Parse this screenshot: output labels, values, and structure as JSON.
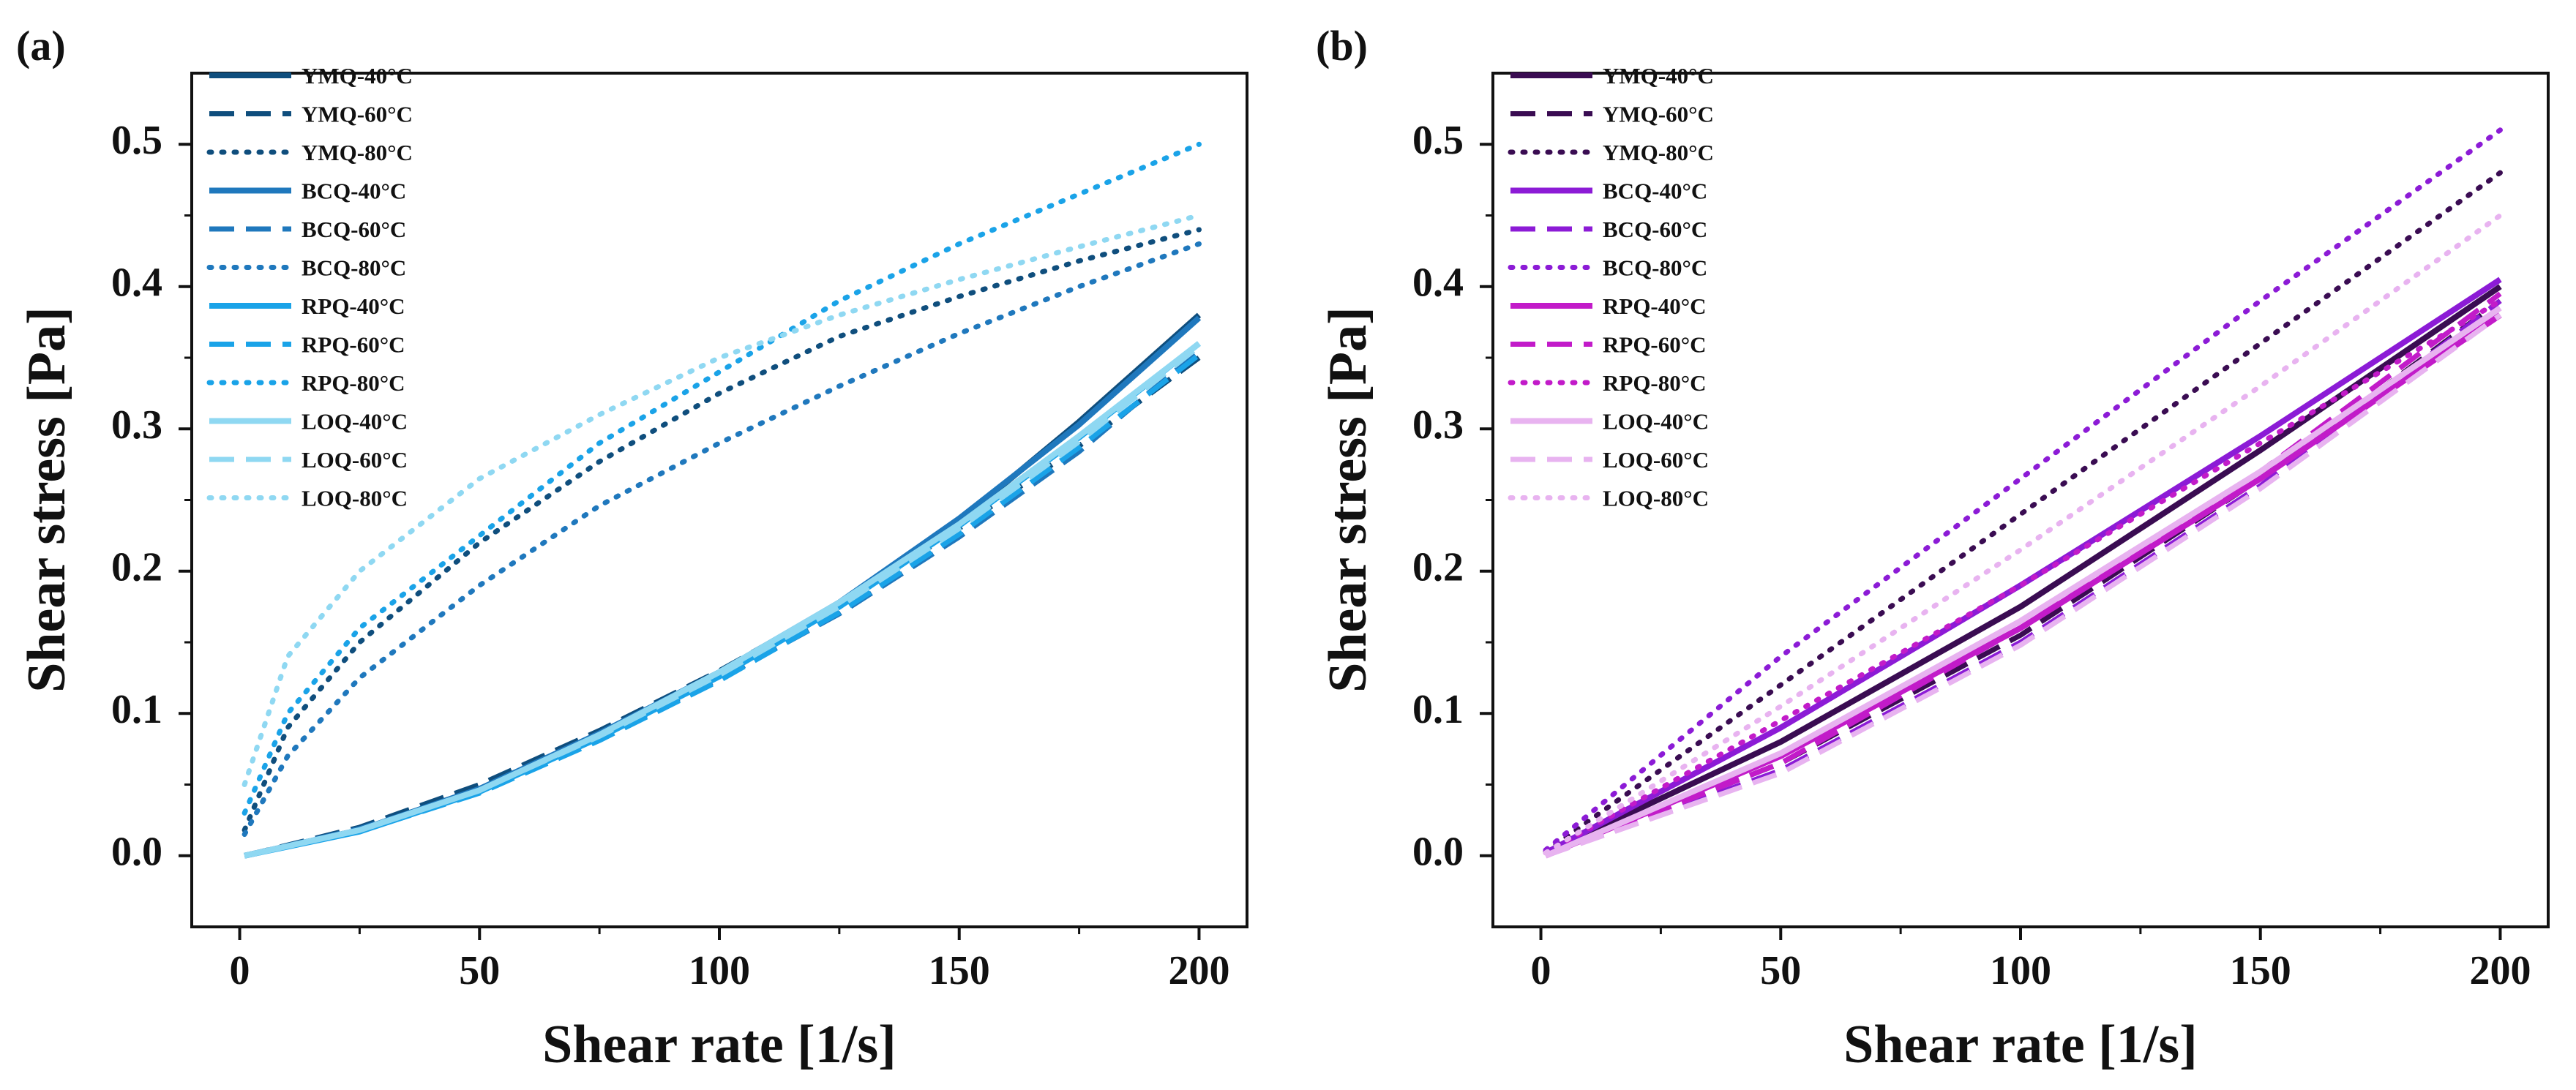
{
  "figure": {
    "panels": [
      "(a)",
      "(b)"
    ]
  },
  "chart_data": [
    {
      "type": "line",
      "panel_label": "(a)",
      "title": "",
      "xlabel": "Shear rate [1/s]",
      "ylabel": "Shear stress [Pa]",
      "xlim": [
        -10,
        210
      ],
      "ylim": [
        -0.05,
        0.55
      ],
      "xticks": [
        0,
        50,
        100,
        150,
        200
      ],
      "xtick_labels": [
        "0",
        "50",
        "100",
        "150",
        "200"
      ],
      "yticks": [
        0.0,
        0.1,
        0.2,
        0.3,
        0.4,
        0.5
      ],
      "ytick_labels": [
        "0.0",
        "0.1",
        "0.2",
        "0.3",
        "0.4",
        "0.5"
      ],
      "grid": false,
      "legend_position": "top-left",
      "series": [
        {
          "name": "YMQ-40°C",
          "color": "#0f4e7d",
          "dash": "solid",
          "points": [
            [
              1,
              0.0
            ],
            [
              25,
              0.018
            ],
            [
              50,
              0.047
            ],
            [
              75,
              0.085
            ],
            [
              100,
              0.128
            ],
            [
              125,
              0.178
            ],
            [
              150,
              0.235
            ],
            [
              175,
              0.305
            ],
            [
              200,
              0.38
            ]
          ]
        },
        {
          "name": "YMQ-60°C",
          "color": "#0f4e7d",
          "dash": "dashed",
          "points": [
            [
              1,
              0.0
            ],
            [
              25,
              0.02
            ],
            [
              50,
              0.05
            ],
            [
              75,
              0.088
            ],
            [
              100,
              0.13
            ],
            [
              125,
              0.177
            ],
            [
              150,
              0.23
            ],
            [
              175,
              0.288
            ],
            [
              200,
              0.35
            ]
          ]
        },
        {
          "name": "YMQ-80°C",
          "color": "#0f4e7d",
          "dash": "dotted",
          "points": [
            [
              1,
              0.018
            ],
            [
              10,
              0.09
            ],
            [
              25,
              0.15
            ],
            [
              50,
              0.22
            ],
            [
              75,
              0.277
            ],
            [
              100,
              0.325
            ],
            [
              125,
              0.365
            ],
            [
              150,
              0.393
            ],
            [
              175,
              0.418
            ],
            [
              200,
              0.44
            ]
          ]
        },
        {
          "name": "BCQ-40°C",
          "color": "#1f78bd",
          "dash": "solid",
          "points": [
            [
              1,
              0.0
            ],
            [
              25,
              0.018
            ],
            [
              50,
              0.047
            ],
            [
              75,
              0.086
            ],
            [
              100,
              0.129
            ],
            [
              125,
              0.178
            ],
            [
              150,
              0.237
            ],
            [
              175,
              0.303
            ],
            [
              200,
              0.378
            ]
          ]
        },
        {
          "name": "BCQ-60°C",
          "color": "#1f78bd",
          "dash": "dashed",
          "points": [
            [
              1,
              0.0
            ],
            [
              25,
              0.019
            ],
            [
              50,
              0.046
            ],
            [
              75,
              0.083
            ],
            [
              100,
              0.124
            ],
            [
              125,
              0.17
            ],
            [
              150,
              0.224
            ],
            [
              175,
              0.284
            ],
            [
              200,
              0.355
            ]
          ]
        },
        {
          "name": "BCQ-80°C",
          "color": "#1f78bd",
          "dash": "dotted",
          "points": [
            [
              1,
              0.015
            ],
            [
              10,
              0.07
            ],
            [
              25,
              0.125
            ],
            [
              50,
              0.19
            ],
            [
              75,
              0.246
            ],
            [
              100,
              0.29
            ],
            [
              125,
              0.33
            ],
            [
              150,
              0.367
            ],
            [
              175,
              0.4
            ],
            [
              200,
              0.43
            ]
          ]
        },
        {
          "name": "RPQ-40°C",
          "color": "#1aa3e8",
          "dash": "solid",
          "points": [
            [
              1,
              0.0
            ],
            [
              25,
              0.017
            ],
            [
              50,
              0.045
            ],
            [
              75,
              0.083
            ],
            [
              100,
              0.126
            ],
            [
              125,
              0.175
            ],
            [
              150,
              0.232
            ],
            [
              175,
              0.294
            ],
            [
              200,
              0.36
            ]
          ]
        },
        {
          "name": "RPQ-60°C",
          "color": "#1aa3e8",
          "dash": "dashed",
          "points": [
            [
              1,
              0.0
            ],
            [
              25,
              0.017
            ],
            [
              50,
              0.044
            ],
            [
              75,
              0.081
            ],
            [
              100,
              0.123
            ],
            [
              125,
              0.171
            ],
            [
              150,
              0.226
            ],
            [
              175,
              0.287
            ],
            [
              200,
              0.352
            ]
          ]
        },
        {
          "name": "RPQ-80°C",
          "color": "#1aa3e8",
          "dash": "dotted",
          "points": [
            [
              1,
              0.03
            ],
            [
              10,
              0.1
            ],
            [
              25,
              0.16
            ],
            [
              50,
              0.225
            ],
            [
              75,
              0.29
            ],
            [
              100,
              0.34
            ],
            [
              125,
              0.39
            ],
            [
              150,
              0.43
            ],
            [
              175,
              0.465
            ],
            [
              200,
              0.5
            ]
          ]
        },
        {
          "name": "LOQ-40°C",
          "color": "#8fd8f2",
          "dash": "solid",
          "points": [
            [
              1,
              0.0
            ],
            [
              25,
              0.018
            ],
            [
              50,
              0.046
            ],
            [
              75,
              0.085
            ],
            [
              100,
              0.129
            ],
            [
              125,
              0.178
            ],
            [
              150,
              0.233
            ],
            [
              175,
              0.295
            ],
            [
              200,
              0.36
            ]
          ]
        },
        {
          "name": "LOQ-60°C",
          "color": "#8fd8f2",
          "dash": "dashed",
          "points": [
            [
              1,
              0.0
            ],
            [
              25,
              0.018
            ],
            [
              50,
              0.046
            ],
            [
              75,
              0.084
            ],
            [
              100,
              0.127
            ],
            [
              125,
              0.175
            ],
            [
              150,
              0.23
            ],
            [
              175,
              0.291
            ],
            [
              200,
              0.358
            ]
          ]
        },
        {
          "name": "LOQ-80°C",
          "color": "#8fd8f2",
          "dash": "dotted",
          "points": [
            [
              1,
              0.05
            ],
            [
              10,
              0.14
            ],
            [
              25,
              0.2
            ],
            [
              50,
              0.265
            ],
            [
              75,
              0.31
            ],
            [
              100,
              0.35
            ],
            [
              125,
              0.38
            ],
            [
              150,
              0.405
            ],
            [
              175,
              0.428
            ],
            [
              200,
              0.45
            ]
          ]
        }
      ]
    },
    {
      "type": "line",
      "panel_label": "(b)",
      "title": "",
      "xlabel": "Shear rate [1/s]",
      "ylabel": "Shear stress [Pa]",
      "xlim": [
        -10,
        210
      ],
      "ylim": [
        -0.05,
        0.55
      ],
      "xticks": [
        0,
        50,
        100,
        150,
        200
      ],
      "xtick_labels": [
        "0",
        "50",
        "100",
        "150",
        "200"
      ],
      "yticks": [
        0.0,
        0.1,
        0.2,
        0.3,
        0.4,
        0.5
      ],
      "ytick_labels": [
        "0.0",
        "0.1",
        "0.2",
        "0.3",
        "0.4",
        "0.5"
      ],
      "grid": false,
      "legend_position": "top-left",
      "series": [
        {
          "name": "YMQ-40°C",
          "color": "#3a0c52",
          "dash": "solid",
          "points": [
            [
              1,
              0.002
            ],
            [
              50,
              0.08
            ],
            [
              100,
              0.175
            ],
            [
              150,
              0.285
            ],
            [
              200,
              0.4
            ]
          ]
        },
        {
          "name": "YMQ-60°C",
          "color": "#3a0c52",
          "dash": "dashed",
          "points": [
            [
              1,
              0.0
            ],
            [
              50,
              0.065
            ],
            [
              100,
              0.155
            ],
            [
              150,
              0.265
            ],
            [
              200,
              0.39
            ]
          ]
        },
        {
          "name": "YMQ-80°C",
          "color": "#3a0c52",
          "dash": "dotted",
          "points": [
            [
              1,
              0.003
            ],
            [
              50,
              0.12
            ],
            [
              100,
              0.24
            ],
            [
              150,
              0.36
            ],
            [
              200,
              0.48
            ]
          ]
        },
        {
          "name": "BCQ-40°C",
          "color": "#8c1bd6",
          "dash": "solid",
          "points": [
            [
              1,
              0.002
            ],
            [
              50,
              0.09
            ],
            [
              100,
              0.19
            ],
            [
              150,
              0.295
            ],
            [
              200,
              0.405
            ]
          ]
        },
        {
          "name": "BCQ-60°C",
          "color": "#8c1bd6",
          "dash": "dashed",
          "points": [
            [
              1,
              0.0
            ],
            [
              50,
              0.06
            ],
            [
              100,
              0.15
            ],
            [
              150,
              0.26
            ],
            [
              200,
              0.39
            ]
          ]
        },
        {
          "name": "BCQ-80°C",
          "color": "#8c1bd6",
          "dash": "dotted",
          "points": [
            [
              1,
              0.004
            ],
            [
              50,
              0.14
            ],
            [
              100,
              0.265
            ],
            [
              150,
              0.39
            ],
            [
              200,
              0.51
            ]
          ]
        },
        {
          "name": "RPQ-40°C",
          "color": "#c21bc9",
          "dash": "solid",
          "points": [
            [
              1,
              0.0
            ],
            [
              50,
              0.07
            ],
            [
              100,
              0.16
            ],
            [
              150,
              0.265
            ],
            [
              200,
              0.38
            ]
          ]
        },
        {
          "name": "RPQ-60°C",
          "color": "#c21bc9",
          "dash": "dashed",
          "points": [
            [
              1,
              0.0
            ],
            [
              50,
              0.065
            ],
            [
              100,
              0.16
            ],
            [
              150,
              0.27
            ],
            [
              200,
              0.395
            ]
          ]
        },
        {
          "name": "RPQ-80°C",
          "color": "#c21bc9",
          "dash": "dotted",
          "points": [
            [
              1,
              0.002
            ],
            [
              50,
              0.095
            ],
            [
              100,
              0.19
            ],
            [
              150,
              0.29
            ],
            [
              200,
              0.39
            ]
          ]
        },
        {
          "name": "LOQ-40°C",
          "color": "#e8b3f0",
          "dash": "solid",
          "points": [
            [
              1,
              0.0
            ],
            [
              50,
              0.072
            ],
            [
              100,
              0.165
            ],
            [
              150,
              0.27
            ],
            [
              200,
              0.385
            ]
          ]
        },
        {
          "name": "LOQ-60°C",
          "color": "#e8b3f0",
          "dash": "dashed",
          "points": [
            [
              1,
              0.0
            ],
            [
              50,
              0.058
            ],
            [
              100,
              0.148
            ],
            [
              150,
              0.258
            ],
            [
              200,
              0.38
            ]
          ]
        },
        {
          "name": "LOQ-80°C",
          "color": "#e8b3f0",
          "dash": "dotted",
          "points": [
            [
              1,
              0.002
            ],
            [
              50,
              0.105
            ],
            [
              100,
              0.215
            ],
            [
              150,
              0.33
            ],
            [
              200,
              0.45
            ]
          ]
        }
      ]
    }
  ]
}
